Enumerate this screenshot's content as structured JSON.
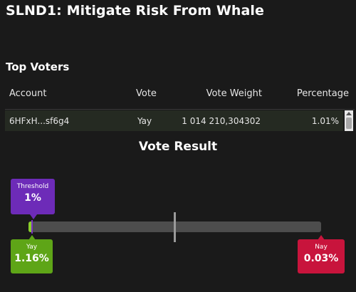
{
  "proposal": {
    "title": "SLND1: Mitigate Risk From Whale"
  },
  "top_voters": {
    "title": "Top Voters",
    "columns": {
      "account": "Account",
      "vote": "Vote",
      "vote_weight": "Vote Weight",
      "percentage": "Percentage"
    },
    "rows": [
      {
        "account": "6HFxH...sf6g4",
        "vote": "Yay",
        "vote_weight": "1 014 210,304302",
        "percentage": "1.01%"
      }
    ]
  },
  "vote_result": {
    "title": "Vote Result",
    "threshold": {
      "label": "Threshold",
      "value": "1%",
      "fraction": 0.01
    },
    "yay": {
      "label": "Yay",
      "value": "1.16%",
      "fraction": 0.0116
    },
    "nay": {
      "label": "Nay",
      "value": "0.03%",
      "fraction": 0.0003
    },
    "colors": {
      "threshold": "#6d2bb8",
      "yay": "#5ea517",
      "yay_bar": "#8bd02a",
      "nay": "#c8143c",
      "track": "#4d4d4d"
    }
  }
}
